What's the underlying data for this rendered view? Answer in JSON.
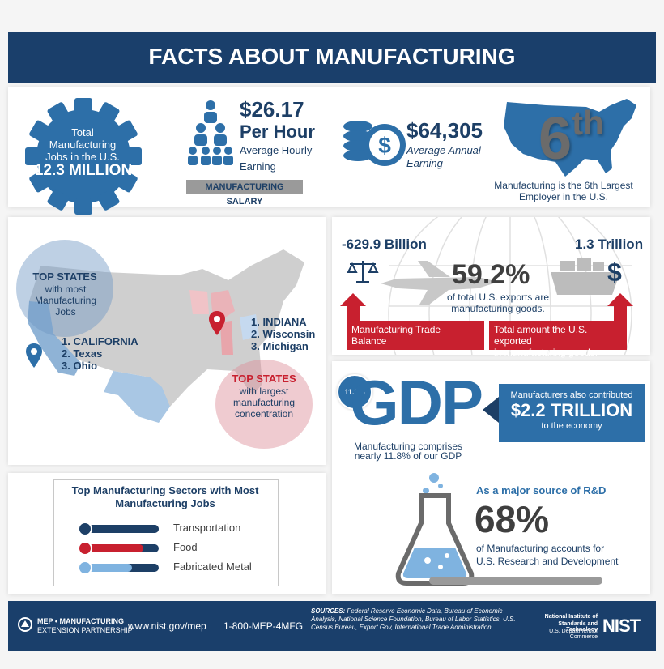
{
  "header": {
    "title": "FACTS ABOUT MANUFACTURING"
  },
  "stats": {
    "jobs_label": "Total Manufacturing Jobs in the U.S.",
    "jobs_value": "12.3 MILLION",
    "wage_value": "$26.17",
    "wage_unit": "Per Hour",
    "wage_label_1": "Average Hourly",
    "wage_label_2": "Earning",
    "wage_banner": "MANUFACTURING SALARY",
    "annual_value": "$64,305",
    "annual_label_1": "Average Annual",
    "annual_label_2": "Earning",
    "rank_value": "6",
    "rank_suffix": "th",
    "rank_label_1": "Manufacturing is the 6th Largest",
    "rank_label_2": "Employer in the U.S."
  },
  "states": {
    "most_title": "TOP STATES",
    "most_sub": "with most Manufacturing Jobs",
    "most_list": [
      "1. CALIFORNIA",
      "2. Texas",
      "3. Ohio"
    ],
    "conc_title": "TOP STATES",
    "conc_sub": "with largest manufacturing concentration",
    "conc_list": [
      "1. INDIANA",
      "2. Wisconsin",
      "3. Michigan"
    ]
  },
  "trade": {
    "balance_value": "-629.9 Billion",
    "export_value": "1.3 Trillion",
    "share_value": "59.2%",
    "share_label_1": "of total U.S. exports are",
    "share_label_2": "manufacturing goods.",
    "balance_label_1": "Manufacturing Trade",
    "balance_label_2": "Balance",
    "export_label_1": "Total amount the U.S. exported",
    "export_label_2": "in manufacturing goods.",
    "dollar_icon": "$"
  },
  "gdp": {
    "badge": "11.8%",
    "word": "GDP",
    "label_1": "Manufacturing comprises",
    "label_2": "nearly 11.8% of our GDP",
    "contrib_1": "Manufacturers also contributed",
    "contrib_value": "$2.2 TRILLION",
    "contrib_2": "to the economy"
  },
  "rnd": {
    "title": "As a major source of R&D",
    "value": "68%",
    "label_1": "of Manufacturing accounts for",
    "label_2": "U.S. Research and Development"
  },
  "sectors": {
    "title_1": "Top Manufacturing Sectors with Most",
    "title_2": "Manufacturing Jobs",
    "items": [
      {
        "label": "Transportation",
        "color": "#1d3f66",
        "level": 1.0
      },
      {
        "label": "Food",
        "color": "#c8202f",
        "level": 0.8
      },
      {
        "label": "Fabricated Metal",
        "color": "#7fb3e0",
        "level": 0.65
      }
    ]
  },
  "footer": {
    "org_1": "MEP • MANUFACTURING",
    "org_2": "EXTENSION PARTNERSHIP",
    "url": "www.nist.gov/mep",
    "phone": "1-800-MEP-4MFG",
    "sources_label": "SOURCES:",
    "sources_text": "Federal Reserve Economic Data, Bureau of Economic Analysis, National Science Foundation, Bureau of Labor Statistics, U.S. Census Bureau, Export.Gov, International Trade Administration",
    "nist_1": "National Institute of",
    "nist_2": "Standards and Technology",
    "nist_3": "U.S. Department of Commerce",
    "nist_logo": "NIST"
  },
  "colors": {
    "navy": "#1d3f66",
    "blue": "#2d6fa8",
    "red": "#c8202f",
    "light_blue": "#7fb3e0"
  }
}
